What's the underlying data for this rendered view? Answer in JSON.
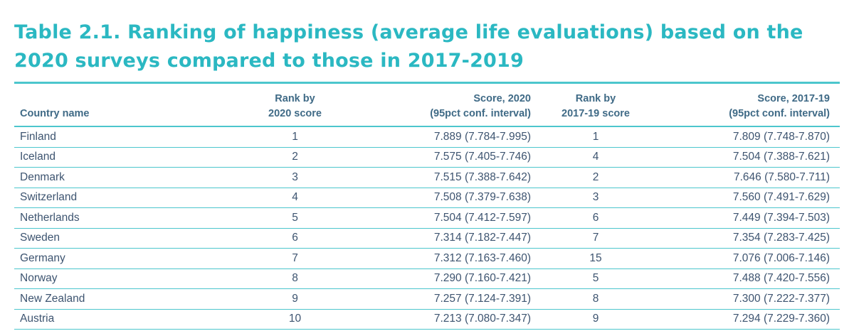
{
  "title": "Table 2.1. Ranking of happiness (average life evaluations) based on the 2020 surveys compared to those in 2017-2019",
  "headers": {
    "country": "Country name",
    "rank2020_line1": "Rank by",
    "rank2020_line2": "2020 score",
    "score2020_line1": "Score, 2020",
    "score2020_line2": "(95pct conf. interval)",
    "rank1719_line1": "Rank by",
    "rank1719_line2": "2017-19 score",
    "score1719_line1": "Score, 2017-19",
    "score1719_line2": "(95pct conf. interval)"
  },
  "rows": [
    {
      "country": "Finland",
      "rank2020": "1",
      "score2020": "7.889 (7.784-7.995)",
      "rank1719": "1",
      "score1719": "7.809 (7.748-7.870)"
    },
    {
      "country": "Iceland",
      "rank2020": "2",
      "score2020": "7.575 (7.405-7.746)",
      "rank1719": "4",
      "score1719": "7.504 (7.388-7.621)"
    },
    {
      "country": "Denmark",
      "rank2020": "3",
      "score2020": "7.515 (7.388-7.642)",
      "rank1719": "2",
      "score1719": "7.646 (7.580-7.711)"
    },
    {
      "country": "Switzerland",
      "rank2020": "4",
      "score2020": "7.508 (7.379-7.638)",
      "rank1719": "3",
      "score1719": "7.560 (7.491-7.629)"
    },
    {
      "country": "Netherlands",
      "rank2020": "5",
      "score2020": "7.504 (7.412-7.597)",
      "rank1719": "6",
      "score1719": "7.449 (7.394-7.503)"
    },
    {
      "country": "Sweden",
      "rank2020": "6",
      "score2020": "7.314 (7.182-7.447)",
      "rank1719": "7",
      "score1719": "7.354 (7.283-7.425)"
    },
    {
      "country": "Germany",
      "rank2020": "7",
      "score2020": "7.312 (7.163-7.460)",
      "rank1719": "15",
      "score1719": "7.076 (7.006-7.146)"
    },
    {
      "country": "Norway",
      "rank2020": "8",
      "score2020": "7.290 (7.160-7.421)",
      "rank1719": "5",
      "score1719": "7.488 (7.420-7.556)"
    },
    {
      "country": "New Zealand",
      "rank2020": "9",
      "score2020": "7.257 (7.124-7.391)",
      "rank1719": "8",
      "score1719": "7.300 (7.222-7.377)"
    },
    {
      "country": "Austria",
      "rank2020": "10",
      "score2020": "7.213 (7.080-7.347)",
      "rank1719": "9",
      "score1719": "7.294 (7.229-7.360)"
    }
  ],
  "colors": {
    "accent": "#2bb8c2",
    "rule": "#4cc6cd",
    "header_text": "#3f6a86",
    "body_text": "#3d5470"
  }
}
